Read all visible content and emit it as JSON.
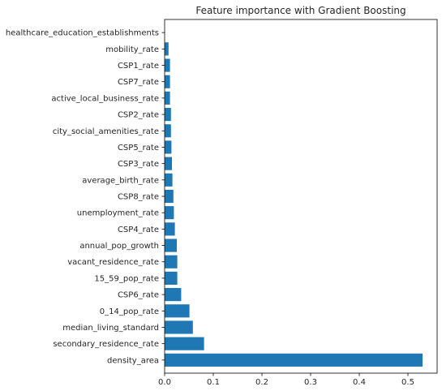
{
  "chart_data": {
    "type": "bar",
    "orientation": "horizontal",
    "title": "Feature importance with Gradient Boosting",
    "xlabel": "",
    "ylabel": "",
    "xlim": [
      0,
      0.56
    ],
    "xticks": [
      0.0,
      0.1,
      0.2,
      0.3,
      0.4,
      0.5
    ],
    "xtick_labels": [
      "0.0",
      "0.1",
      "0.2",
      "0.3",
      "0.4",
      "0.5"
    ],
    "grid": false,
    "bar_color": "#1f77b4",
    "categories": [
      "density_area",
      "secondary_residence_rate",
      "median_living_standard",
      "0_14_pop_rate",
      "CSP6_rate",
      "15_59_pop_rate",
      "vacant_residence_rate",
      "annual_pop_growth",
      "CSP4_rate",
      "unemployment_rate",
      "CSP8_rate",
      "average_birth_rate",
      "CSP3_rate",
      "CSP5_rate",
      "city_social_amenities_rate",
      "CSP2_rate",
      "active_local_business_rate",
      "CSP7_rate",
      "CSP1_rate",
      "mobility_rate",
      "healthcare_education_establishments"
    ],
    "values": [
      0.53,
      0.081,
      0.058,
      0.051,
      0.034,
      0.026,
      0.026,
      0.025,
      0.021,
      0.019,
      0.018,
      0.016,
      0.015,
      0.014,
      0.013,
      0.013,
      0.011,
      0.011,
      0.011,
      0.008,
      0.0
    ]
  }
}
